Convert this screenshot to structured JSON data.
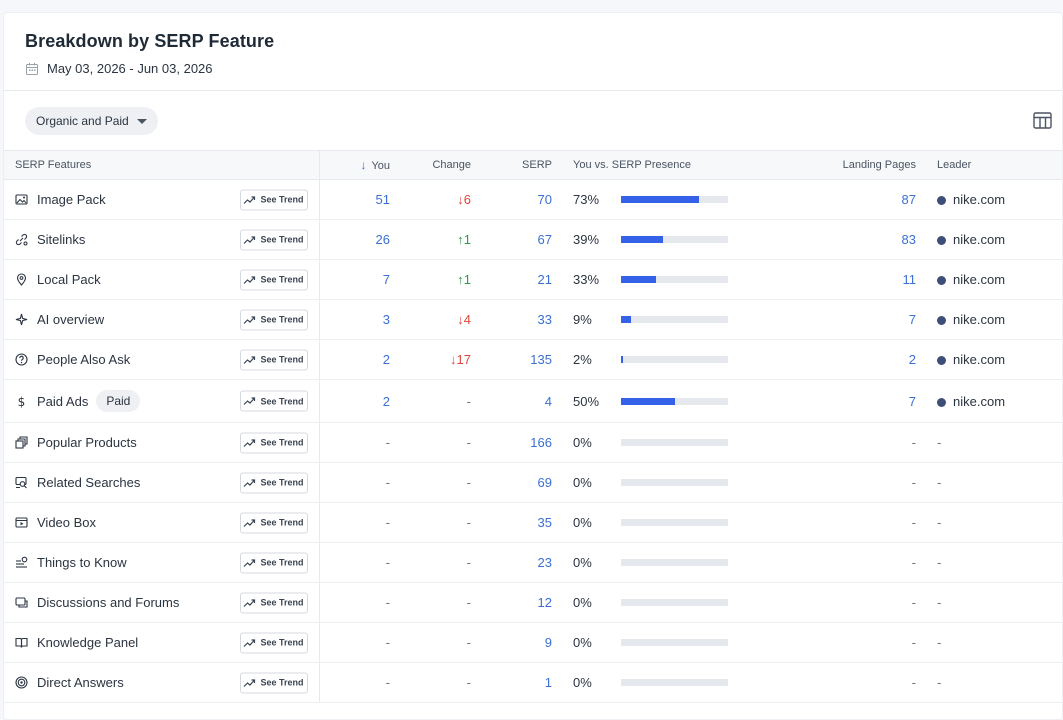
{
  "header": {
    "title": "Breakdown by SERP Feature",
    "date_range": "May 03, 2026 - Jun 03, 2026"
  },
  "filter": {
    "selected": "Organic and Paid"
  },
  "columns": {
    "feature": "SERP Features",
    "you": "You",
    "change": "Change",
    "serp": "SERP",
    "presence": "You vs. SERP Presence",
    "landing": "Landing Pages",
    "leader": "Leader"
  },
  "trend_label": "See Trend",
  "rows": [
    {
      "icon": "image-icon",
      "label": "Image Pack",
      "tag": "",
      "you": "51",
      "change": "6",
      "dir": "down",
      "serp": "70",
      "pct": "73%",
      "fill": 0.73,
      "landing": "87",
      "leader": "nike.com"
    },
    {
      "icon": "sitelinks-icon",
      "label": "Sitelinks",
      "tag": "",
      "you": "26",
      "change": "1",
      "dir": "up",
      "serp": "67",
      "pct": "39%",
      "fill": 0.39,
      "landing": "83",
      "leader": "nike.com"
    },
    {
      "icon": "location-pin-icon",
      "label": "Local Pack",
      "tag": "",
      "you": "7",
      "change": "1",
      "dir": "up",
      "serp": "21",
      "pct": "33%",
      "fill": 0.33,
      "landing": "11",
      "leader": "nike.com"
    },
    {
      "icon": "sparkle-icon",
      "label": "AI overview",
      "tag": "",
      "you": "3",
      "change": "4",
      "dir": "down",
      "serp": "33",
      "pct": "9%",
      "fill": 0.09,
      "landing": "7",
      "leader": "nike.com"
    },
    {
      "icon": "question-icon",
      "label": "People Also Ask",
      "tag": "",
      "you": "2",
      "change": "17",
      "dir": "down",
      "serp": "135",
      "pct": "2%",
      "fill": 0.02,
      "landing": "2",
      "leader": "nike.com"
    },
    {
      "icon": "dollar-icon",
      "label": "Paid Ads",
      "tag": "Paid",
      "you": "2",
      "change": "-",
      "dir": "none",
      "serp": "4",
      "pct": "50%",
      "fill": 0.5,
      "landing": "7",
      "leader": "nike.com"
    },
    {
      "icon": "products-icon",
      "label": "Popular Products",
      "tag": "",
      "you": "-",
      "change": "-",
      "dir": "none",
      "serp": "166",
      "pct": "0%",
      "fill": 0,
      "landing": "-",
      "leader": "-"
    },
    {
      "icon": "related-searches-icon",
      "label": "Related Searches",
      "tag": "",
      "you": "-",
      "change": "-",
      "dir": "none",
      "serp": "69",
      "pct": "0%",
      "fill": 0,
      "landing": "-",
      "leader": "-"
    },
    {
      "icon": "video-icon",
      "label": "Video Box",
      "tag": "",
      "you": "-",
      "change": "-",
      "dir": "none",
      "serp": "35",
      "pct": "0%",
      "fill": 0,
      "landing": "-",
      "leader": "-"
    },
    {
      "icon": "things-to-know-icon",
      "label": "Things to Know",
      "tag": "",
      "you": "-",
      "change": "-",
      "dir": "none",
      "serp": "23",
      "pct": "0%",
      "fill": 0,
      "landing": "-",
      "leader": "-"
    },
    {
      "icon": "discussions-icon",
      "label": "Discussions and Forums",
      "tag": "",
      "you": "-",
      "change": "-",
      "dir": "none",
      "serp": "12",
      "pct": "0%",
      "fill": 0,
      "landing": "-",
      "leader": "-"
    },
    {
      "icon": "book-icon",
      "label": "Knowledge Panel",
      "tag": "",
      "you": "-",
      "change": "-",
      "dir": "none",
      "serp": "9",
      "pct": "0%",
      "fill": 0,
      "landing": "-",
      "leader": "-"
    },
    {
      "icon": "target-icon",
      "label": "Direct Answers",
      "tag": "",
      "you": "-",
      "change": "-",
      "dir": "none",
      "serp": "1",
      "pct": "0%",
      "fill": 0,
      "landing": "-",
      "leader": "-"
    }
  ],
  "colors": {
    "link": "#3b6fd4",
    "up": "#2e9e4a",
    "down": "#e0463b",
    "bar": "#3560e8",
    "leader_dot": "#3f4e78"
  }
}
